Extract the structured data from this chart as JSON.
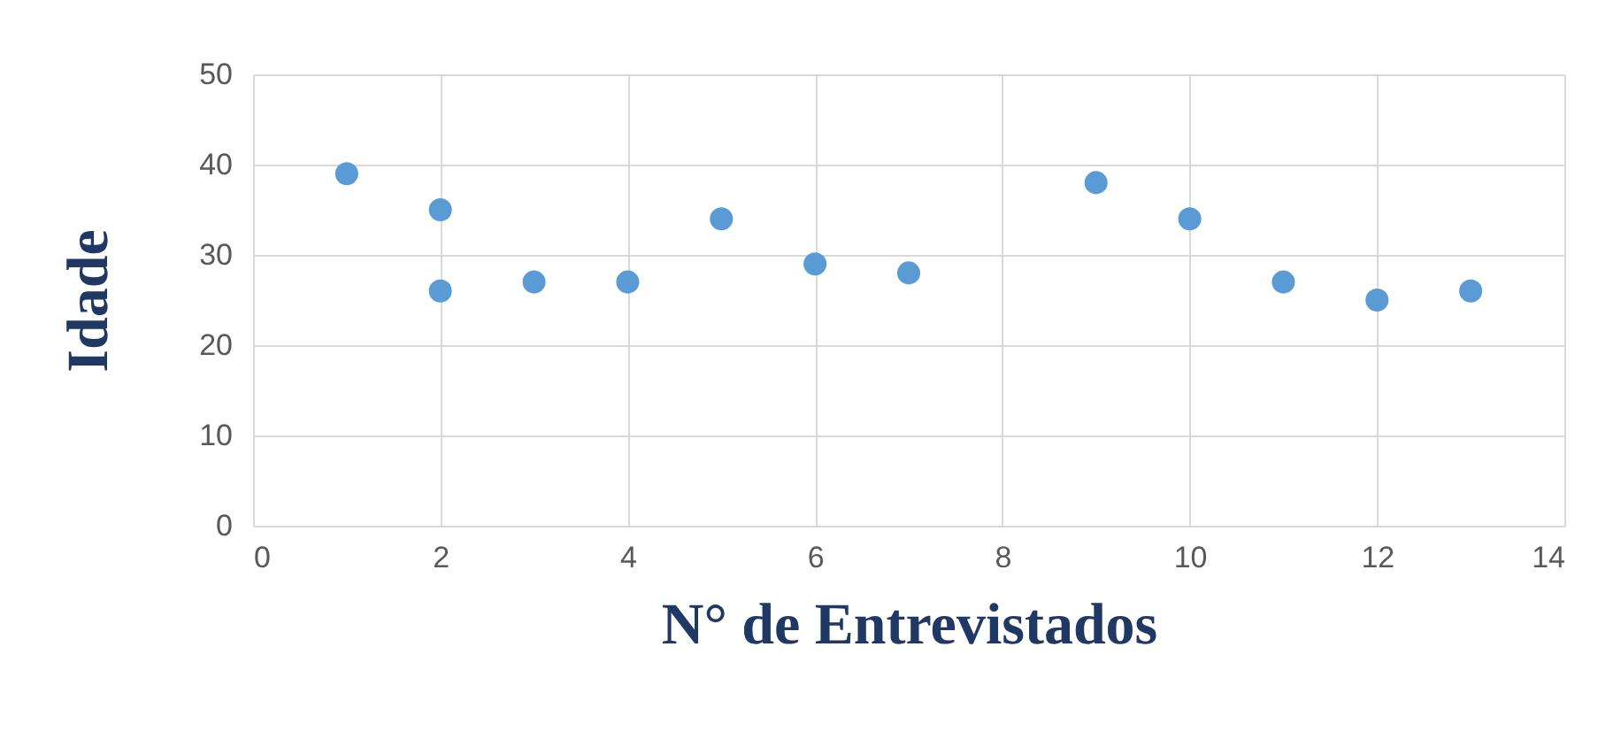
{
  "chart_data": {
    "type": "scatter",
    "xlabel": "N° de Entrevistados",
    "ylabel": "Idade",
    "x": [
      1,
      2,
      2,
      3,
      4,
      5,
      6,
      7,
      9,
      10,
      11,
      12,
      13
    ],
    "series": [
      {
        "color": "#5b9bd5",
        "values": [
          39,
          35,
          26,
          27,
          27,
          34,
          29,
          28,
          38,
          34,
          27,
          25,
          26
        ]
      }
    ],
    "xlim": [
      0,
      14
    ],
    "xticks": [
      0,
      2,
      4,
      6,
      8,
      10,
      12,
      14
    ],
    "ylim": [
      0,
      50
    ],
    "yticks": [
      0,
      10,
      20,
      30,
      40,
      50
    ],
    "grid": true,
    "marker": "circle",
    "legend": false
  }
}
